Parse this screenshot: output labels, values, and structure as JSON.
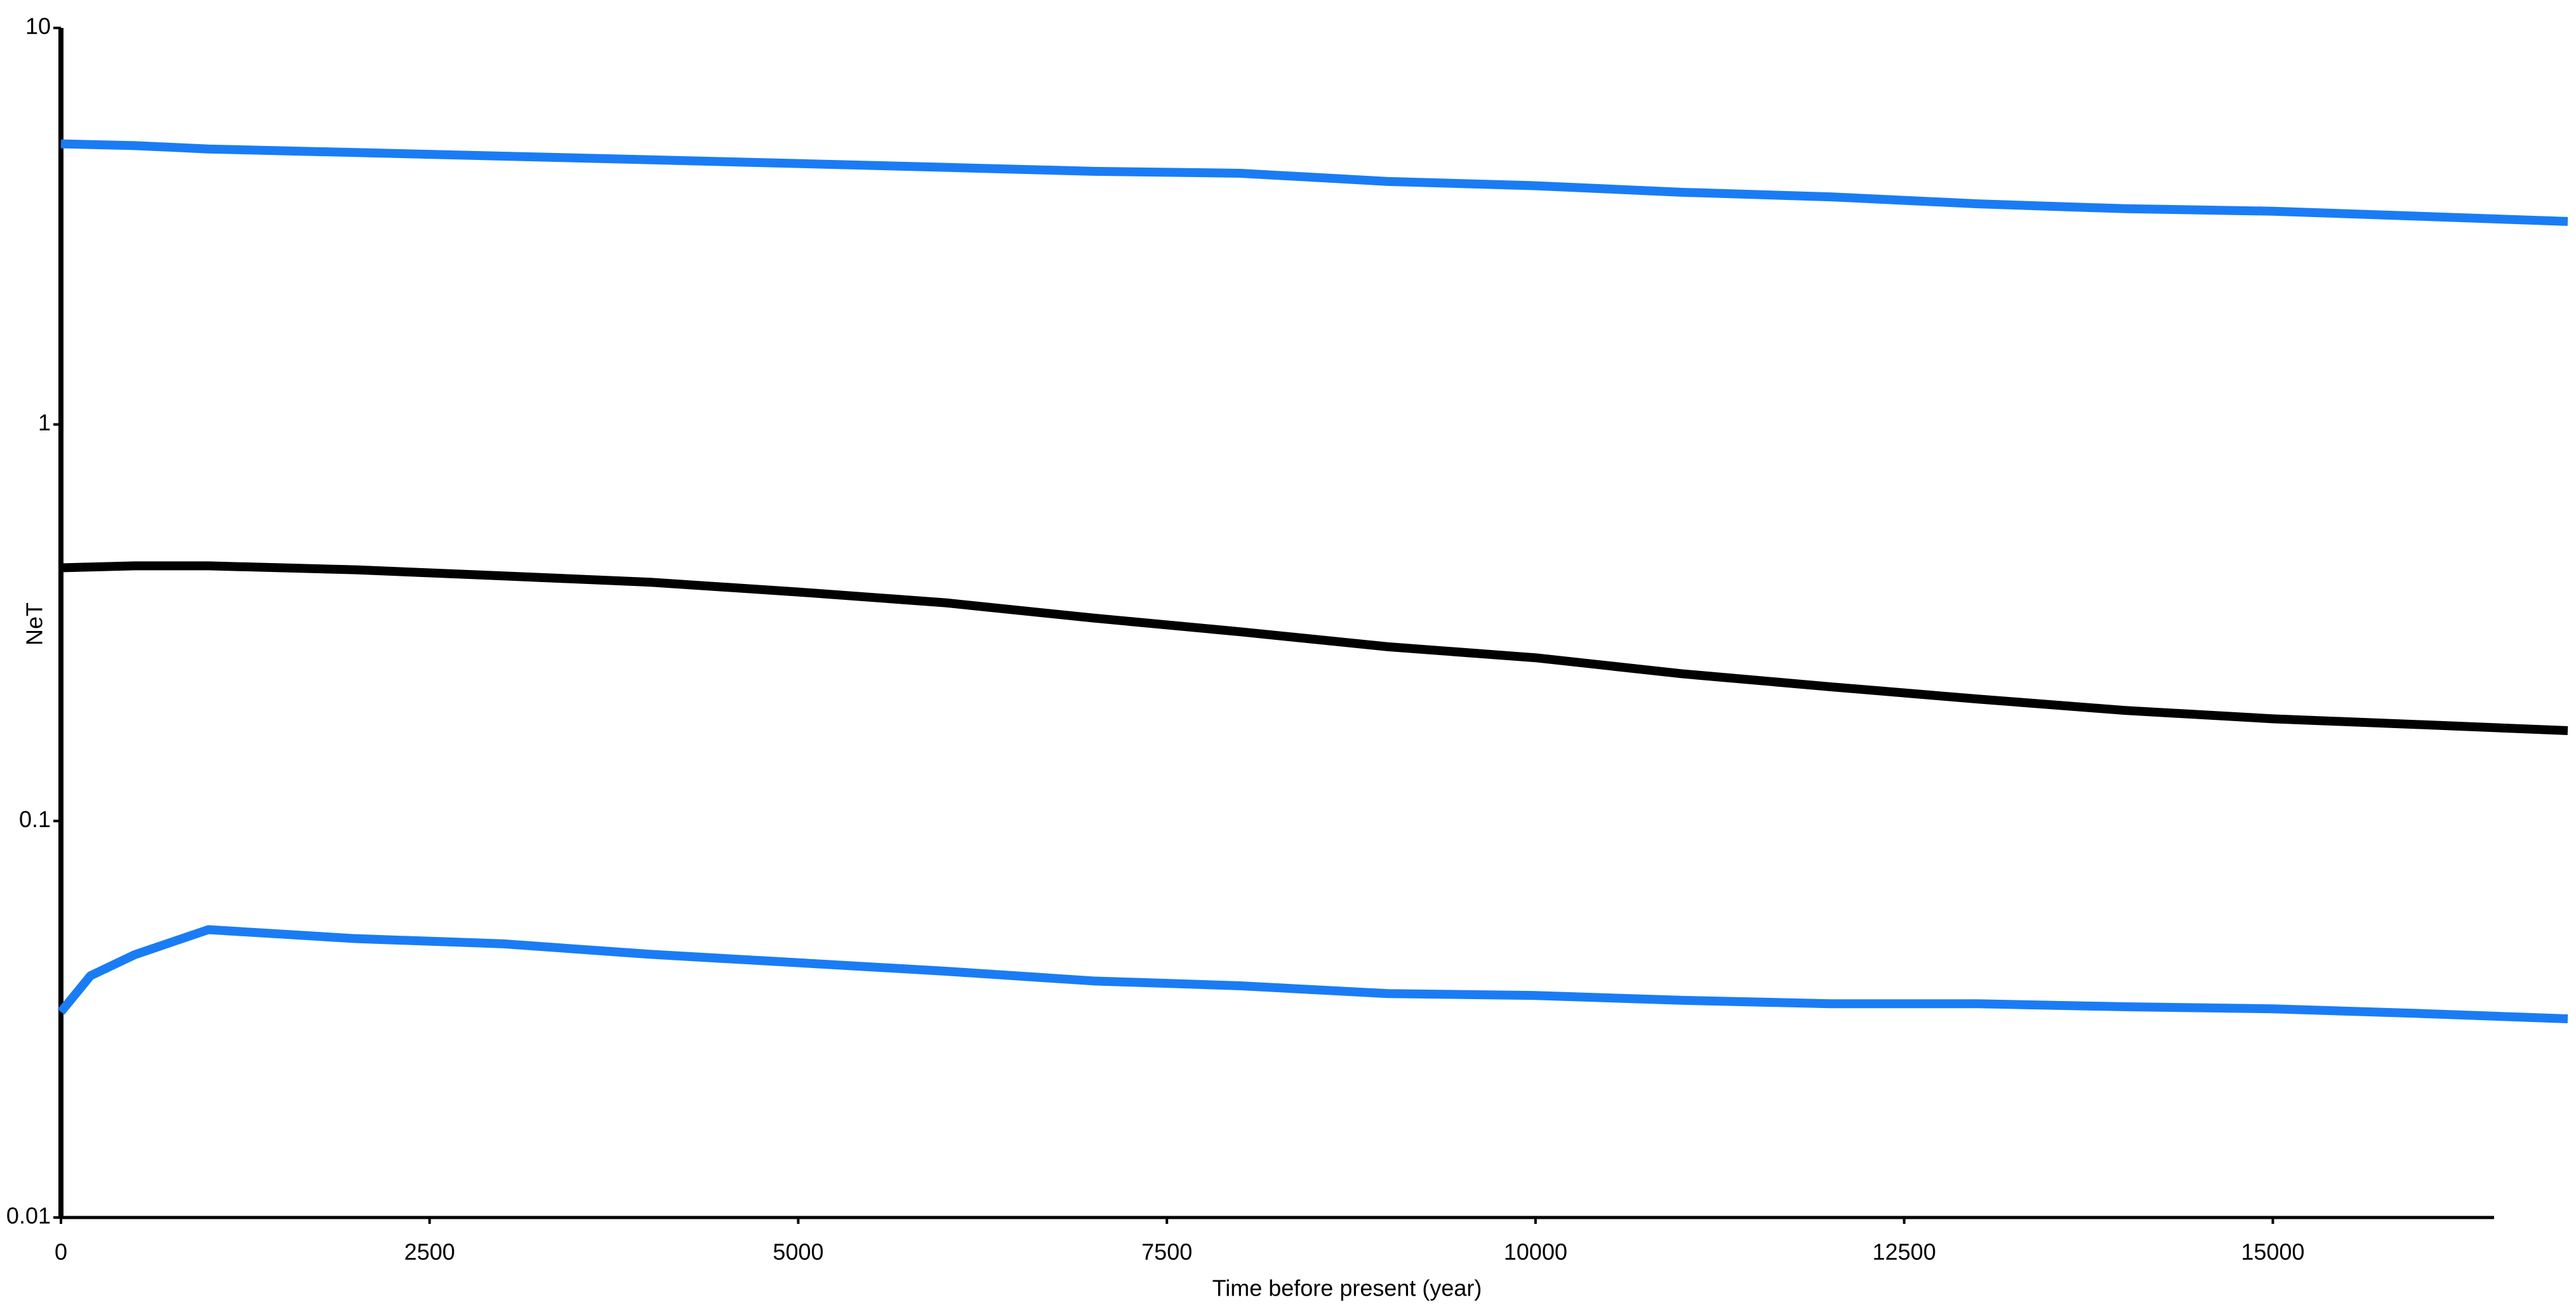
{
  "chart_data": {
    "type": "line",
    "x_label": "Time before present (year)",
    "y_label": "NeT",
    "x": [
      0,
      200,
      500,
      1000,
      2000,
      3000,
      4000,
      5000,
      6000,
      7000,
      8000,
      9000,
      10000,
      11000,
      12000,
      13000,
      14000,
      15000,
      16000,
      17000
    ],
    "series": [
      {
        "color": "#1a7cf5",
        "values": [
          5.1,
          5.08,
          5.05,
          4.95,
          4.85,
          4.75,
          4.65,
          4.55,
          4.45,
          4.35,
          4.3,
          4.1,
          4.0,
          3.85,
          3.75,
          3.6,
          3.5,
          3.45,
          3.35,
          3.25
        ]
      },
      {
        "color": "#000000",
        "values": [
          0.435,
          0.437,
          0.44,
          0.44,
          0.43,
          0.415,
          0.4,
          0.378,
          0.355,
          0.325,
          0.3,
          0.275,
          0.258,
          0.235,
          0.218,
          0.203,
          0.19,
          0.181,
          0.175,
          0.169
        ]
      },
      {
        "color": "#1a7cf5",
        "values": [
          0.033,
          0.0407,
          0.046,
          0.0532,
          0.0505,
          0.049,
          0.0461,
          0.0439,
          0.0418,
          0.0395,
          0.0384,
          0.0367,
          0.0363,
          0.0353,
          0.0346,
          0.0346,
          0.034,
          0.0336,
          0.0327,
          0.0317
        ]
      }
    ],
    "xlim": [
      0,
      17000
    ],
    "xticks": [
      0,
      2500,
      5000,
      7500,
      10000,
      12500,
      15000
    ],
    "ylim": [
      0.01,
      10
    ],
    "yticks": [
      0.01,
      0.1,
      1,
      10
    ],
    "y_log": true
  }
}
